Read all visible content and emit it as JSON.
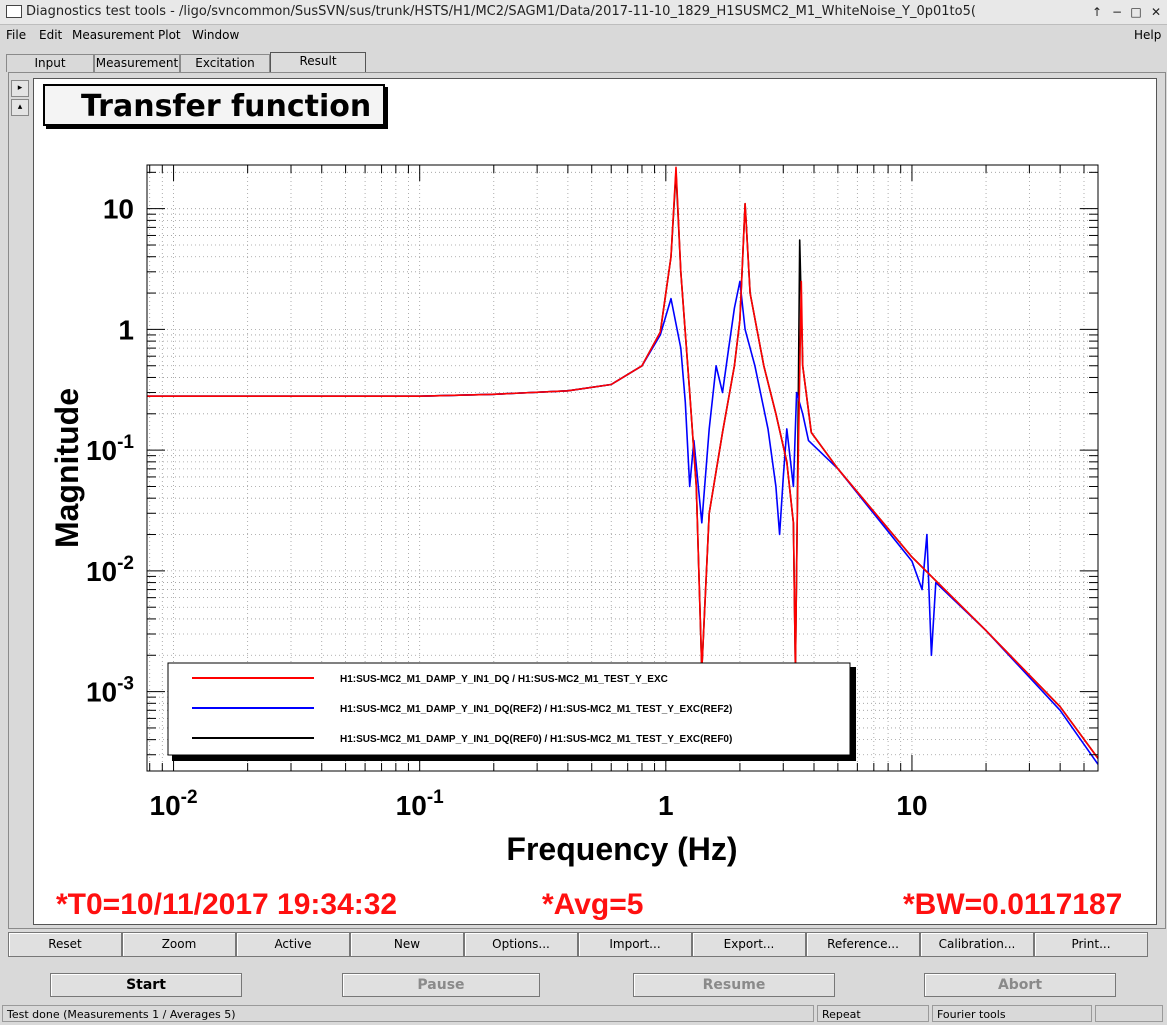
{
  "window": {
    "title": "Diagnostics test tools - /ligo/svncommon/SusSVN/sus/trunk/HSTS/H1/MC2/SAGM1/Data/2017-11-10_1829_H1SUSMC2_M1_WhiteNoise_Y_0p01to5(",
    "controls": [
      "↑",
      "−",
      "□",
      "✕"
    ]
  },
  "menu": {
    "file": "File",
    "edit": "Edit",
    "measurement": "Measurement",
    "plot": "Plot",
    "window": "Window",
    "help": "Help"
  },
  "tabs": [
    "Input",
    "Measurement",
    "Excitation",
    "Result"
  ],
  "plot_title": "Transfer function",
  "chart_data": {
    "type": "line",
    "xlabel": "Frequency (Hz)",
    "ylabel": "Magnitude",
    "xscale": "log",
    "yscale": "log",
    "xlim": [
      0.0078,
      57
    ],
    "ylim": [
      0.00022,
      23
    ],
    "grid": true,
    "legend_position": "bottom-left",
    "x_ticks": [
      {
        "v": 0.01,
        "base": "10",
        "exp": "-2"
      },
      {
        "v": 0.1,
        "base": "10",
        "exp": "-1"
      },
      {
        "v": 1,
        "base": "1",
        "exp": ""
      },
      {
        "v": 10,
        "base": "10",
        "exp": ""
      }
    ],
    "y_ticks": [
      {
        "v": 0.001,
        "base": "10",
        "exp": "-3"
      },
      {
        "v": 0.01,
        "base": "10",
        "exp": "-2"
      },
      {
        "v": 0.1,
        "base": "10",
        "exp": "-1"
      },
      {
        "v": 1,
        "base": "1",
        "exp": ""
      },
      {
        "v": 10,
        "base": "10",
        "exp": ""
      }
    ],
    "series": [
      {
        "name": "H1:SUS-MC2_M1_DAMP_Y_IN1_DQ(REF0) / H1:SUS-MC2_M1_TEST_Y_EXC(REF0)",
        "color": "#000000",
        "points": [
          [
            0.0078,
            0.28
          ],
          [
            0.1,
            0.28
          ],
          [
            0.2,
            0.29
          ],
          [
            0.4,
            0.31
          ],
          [
            0.6,
            0.35
          ],
          [
            0.8,
            0.5
          ],
          [
            0.95,
            0.95
          ],
          [
            1.05,
            4.0
          ],
          [
            1.1,
            20.0
          ],
          [
            1.15,
            3.0
          ],
          [
            1.25,
            0.3
          ],
          [
            1.33,
            0.05
          ],
          [
            1.4,
            0.0015
          ],
          [
            1.5,
            0.03
          ],
          [
            1.7,
            0.14
          ],
          [
            1.9,
            0.5
          ],
          [
            2.0,
            1.2
          ],
          [
            2.1,
            11.0
          ],
          [
            2.2,
            2.0
          ],
          [
            2.5,
            0.5
          ],
          [
            2.8,
            0.2
          ],
          [
            3.1,
            0.08
          ],
          [
            3.3,
            0.025
          ],
          [
            3.36,
            0.0015
          ],
          [
            3.42,
            0.03
          ],
          [
            3.5,
            5.5
          ],
          [
            3.6,
            0.5
          ],
          [
            3.9,
            0.14
          ],
          [
            5.0,
            0.07
          ],
          [
            10.0,
            0.013
          ],
          [
            20.0,
            0.0032
          ],
          [
            40.0,
            0.00075
          ],
          [
            57.0,
            0.00028
          ]
        ]
      },
      {
        "name": "H1:SUS-MC2_M1_DAMP_Y_IN1_DQ(REF2) / H1:SUS-MC2_M1_TEST_Y_EXC(REF2)",
        "color": "#0000ff",
        "points": [
          [
            0.0078,
            0.28
          ],
          [
            0.1,
            0.28
          ],
          [
            0.2,
            0.29
          ],
          [
            0.4,
            0.31
          ],
          [
            0.6,
            0.35
          ],
          [
            0.8,
            0.5
          ],
          [
            0.95,
            0.9
          ],
          [
            1.05,
            1.8
          ],
          [
            1.15,
            0.7
          ],
          [
            1.2,
            0.25
          ],
          [
            1.25,
            0.05
          ],
          [
            1.3,
            0.12
          ],
          [
            1.4,
            0.025
          ],
          [
            1.5,
            0.15
          ],
          [
            1.6,
            0.5
          ],
          [
            1.7,
            0.3
          ],
          [
            1.8,
            0.7
          ],
          [
            1.9,
            1.5
          ],
          [
            2.0,
            2.5
          ],
          [
            2.1,
            1.0
          ],
          [
            2.3,
            0.5
          ],
          [
            2.6,
            0.15
          ],
          [
            2.8,
            0.05
          ],
          [
            2.9,
            0.02
          ],
          [
            3.0,
            0.06
          ],
          [
            3.1,
            0.15
          ],
          [
            3.3,
            0.05
          ],
          [
            3.4,
            0.3
          ],
          [
            3.6,
            0.2
          ],
          [
            3.8,
            0.12
          ],
          [
            5.0,
            0.07
          ],
          [
            10.0,
            0.012
          ],
          [
            11.0,
            0.007
          ],
          [
            11.5,
            0.02
          ],
          [
            12.0,
            0.002
          ],
          [
            12.5,
            0.008
          ],
          [
            20.0,
            0.0032
          ],
          [
            40.0,
            0.0007
          ],
          [
            57.0,
            0.00025
          ]
        ]
      },
      {
        "name": "H1:SUS-MC2_M1_DAMP_Y_IN1_DQ / H1:SUS-MC2_M1_TEST_Y_EXC",
        "color": "#ff0000",
        "points": [
          [
            0.0078,
            0.28
          ],
          [
            0.1,
            0.28
          ],
          [
            0.2,
            0.29
          ],
          [
            0.4,
            0.31
          ],
          [
            0.6,
            0.35
          ],
          [
            0.8,
            0.5
          ],
          [
            0.95,
            0.95
          ],
          [
            1.05,
            4.0
          ],
          [
            1.1,
            22.0
          ],
          [
            1.15,
            3.0
          ],
          [
            1.25,
            0.3
          ],
          [
            1.33,
            0.05
          ],
          [
            1.4,
            0.0015
          ],
          [
            1.5,
            0.03
          ],
          [
            1.7,
            0.14
          ],
          [
            1.9,
            0.5
          ],
          [
            2.0,
            1.2
          ],
          [
            2.1,
            11.0
          ],
          [
            2.2,
            2.0
          ],
          [
            2.5,
            0.5
          ],
          [
            2.8,
            0.2
          ],
          [
            3.1,
            0.08
          ],
          [
            3.3,
            0.025
          ],
          [
            3.36,
            0.0015
          ],
          [
            3.42,
            0.03
          ],
          [
            3.55,
            2.5
          ],
          [
            3.6,
            0.5
          ],
          [
            3.9,
            0.14
          ],
          [
            5.0,
            0.07
          ],
          [
            10.0,
            0.013
          ],
          [
            20.0,
            0.0032
          ],
          [
            40.0,
            0.00075
          ],
          [
            57.0,
            0.00028
          ]
        ]
      }
    ],
    "legend": [
      {
        "label": "H1:SUS-MC2_M1_DAMP_Y_IN1_DQ / H1:SUS-MC2_M1_TEST_Y_EXC",
        "color": "#ff0000"
      },
      {
        "label": "H1:SUS-MC2_M1_DAMP_Y_IN1_DQ(REF2) / H1:SUS-MC2_M1_TEST_Y_EXC(REF2)",
        "color": "#0000ff"
      },
      {
        "label": "H1:SUS-MC2_M1_DAMP_Y_IN1_DQ(REF0) / H1:SUS-MC2_M1_TEST_Y_EXC(REF0)",
        "color": "#000000"
      }
    ]
  },
  "plot_info": {
    "t0": "*T0=10/11/2017 19:34:32",
    "avg": "*Avg=5",
    "bw": "*BW=0.0117187",
    "color": "#ff1010"
  },
  "buttons": [
    "Reset",
    "Zoom",
    "Active",
    "New",
    "Options...",
    "Import...",
    "Export...",
    "Reference...",
    "Calibration...",
    "Print..."
  ],
  "controls": {
    "start": "Start",
    "pause": "Pause",
    "resume": "Resume",
    "abort": "Abort"
  },
  "status": {
    "message": "Test done (Measurements 1 / Averages 5)",
    "mode": "Repeat",
    "tool": "Fourier tools"
  }
}
